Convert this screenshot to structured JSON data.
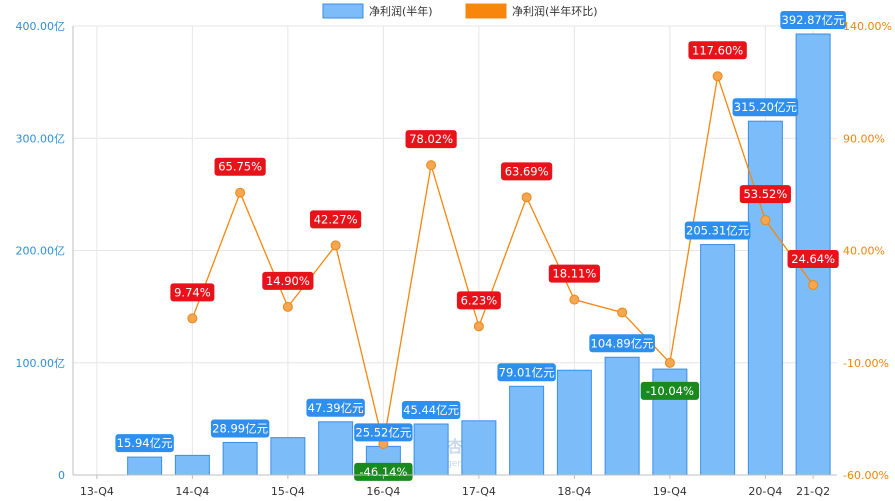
{
  "chart_data": {
    "type": "bar+line",
    "categories": [
      "13-Q4",
      "14-Q2",
      "14-Q4",
      "15-Q2",
      "15-Q4",
      "16-Q2",
      "16-Q4",
      "17-Q2",
      "17-Q4",
      "18-Q2",
      "18-Q4",
      "19-Q2",
      "19-Q4",
      "20-Q2",
      "20-Q4",
      "21-Q2"
    ],
    "x_tick_labels": [
      "13-Q4",
      "14-Q4",
      "15-Q4",
      "16-Q4",
      "17-Q4",
      "18-Q4",
      "19-Q4",
      "20-Q4",
      "21-Q2"
    ],
    "x_tick_categories": [
      "13-Q4",
      "14-Q4",
      "15-Q4",
      "16-Q4",
      "17-Q4",
      "18-Q4",
      "19-Q4",
      "20-Q4",
      "21-Q2"
    ],
    "legend": {
      "placement": "top-center",
      "items": [
        {
          "name": "净利润(半年)",
          "color": "#7cbcf8"
        },
        {
          "name": "净利润(半年环比)",
          "color": "#f8860d"
        }
      ]
    },
    "y_left": {
      "range": [
        0,
        400
      ],
      "ticks": [
        0,
        100,
        200,
        300,
        400
      ],
      "tick_labels": [
        "0",
        "100.00亿",
        "200.00亿",
        "300.00亿",
        "400.00亿"
      ]
    },
    "y_right": {
      "range": [
        -60,
        140
      ],
      "ticks": [
        -60,
        -10,
        40,
        90,
        140
      ],
      "tick_labels": [
        "-60.00%",
        "-10.00%",
        "40.00%",
        "90.00%",
        "140.00%"
      ]
    },
    "grid": true,
    "series": [
      {
        "name": "净利润(半年)",
        "kind": "bar",
        "color": "#7cbcf8",
        "values": [
          null,
          15.94,
          17.49,
          28.99,
          33.3,
          47.39,
          25.52,
          45.44,
          48.27,
          79.01,
          93.32,
          104.89,
          94.36,
          205.31,
          315.2,
          392.87
        ]
      },
      {
        "name": "净利润(半年环比)",
        "kind": "line",
        "color": "#f8860d",
        "values": [
          null,
          null,
          9.74,
          65.75,
          14.9,
          42.27,
          -46.14,
          78.02,
          6.23,
          63.69,
          18.11,
          12.4,
          -10.04,
          117.6,
          53.52,
          24.64
        ]
      }
    ],
    "bar_labels": [
      {
        "category": "14-Q2",
        "text": "15.94亿元"
      },
      {
        "category": "15-Q2",
        "text": "28.99亿元"
      },
      {
        "category": "16-Q2",
        "text": "47.39亿元"
      },
      {
        "category": "16-Q4",
        "text": "25.52亿元"
      },
      {
        "category": "17-Q2",
        "text": "45.44亿元"
      },
      {
        "category": "18-Q2",
        "text": "79.01亿元"
      },
      {
        "category": "19-Q2",
        "text": "104.89亿元"
      },
      {
        "category": "20-Q2",
        "text": "205.31亿元"
      },
      {
        "category": "20-Q4",
        "text": "315.20亿元"
      },
      {
        "category": "21-Q2",
        "text": "392.87亿元"
      }
    ],
    "line_labels": [
      {
        "category": "14-Q4",
        "text": "9.74%"
      },
      {
        "category": "15-Q2",
        "text": "65.75%"
      },
      {
        "category": "15-Q4",
        "text": "14.90%"
      },
      {
        "category": "16-Q2",
        "text": "42.27%"
      },
      {
        "category": "16-Q4",
        "text": "-46.14%"
      },
      {
        "category": "17-Q2",
        "text": "78.02%"
      },
      {
        "category": "17-Q4",
        "text": "6.23%"
      },
      {
        "category": "18-Q2",
        "text": "63.69%"
      },
      {
        "category": "18-Q4",
        "text": "18.11%"
      },
      {
        "category": "19-Q4",
        "text": "-10.04%"
      },
      {
        "category": "20-Q2",
        "text": "117.60%"
      },
      {
        "category": "20-Q4",
        "text": "53.52%"
      },
      {
        "category": "21-Q2",
        "text": "24.64%"
      }
    ],
    "label_colors": {
      "positive": "#e8131a",
      "negative": "#1a8a1f",
      "bar": "#2f8fee"
    }
  },
  "watermark": {
    "text": "理杏仁",
    "sub": "lixinger.com"
  }
}
